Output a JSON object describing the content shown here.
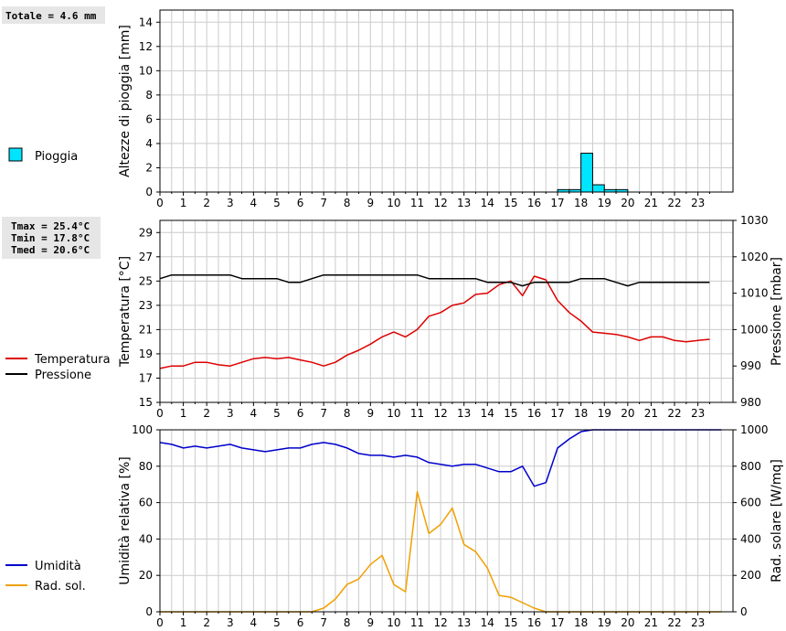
{
  "rain_summary": "Totale = 4.6 mm",
  "temp_summary": [
    "Tmax = 25.4°C",
    "Tmin = 17.8°C",
    "Tmed = 20.6°C"
  ],
  "colors": {
    "rain": "#00e5ff",
    "temperature": "#dd0000",
    "pressure": "#000000",
    "humidity": "#0000cc",
    "radiation": "#f0a000",
    "grid": "#cccccc",
    "summary_box": "#e6e6e6"
  },
  "chart_data": [
    {
      "type": "bar",
      "ylabel": "Altezze di pioggia [mm]",
      "ylim": [
        0,
        15
      ],
      "yticks": [
        0,
        2,
        4,
        6,
        8,
        10,
        12,
        14
      ],
      "xticks": [
        0,
        1,
        2,
        3,
        4,
        5,
        6,
        7,
        8,
        9,
        10,
        11,
        12,
        13,
        14,
        15,
        16,
        17,
        18,
        19,
        20,
        21,
        22,
        23
      ],
      "xlim": [
        0,
        24.5
      ],
      "grid": true,
      "legend": [
        {
          "name": "Pioggia",
          "color": "#00e5ff"
        }
      ],
      "series": [
        {
          "name": "Pioggia",
          "bin_width": 0.5,
          "x": [
            17.0,
            17.5,
            18.0,
            18.5,
            19.0,
            19.5
          ],
          "values": [
            0.2,
            0.2,
            3.2,
            0.6,
            0.2,
            0.2
          ]
        }
      ]
    },
    {
      "type": "line",
      "ylabel": "Temperatura [°C]",
      "ylim": [
        15,
        30
      ],
      "yticks": [
        15,
        17,
        19,
        21,
        23,
        25,
        27,
        29
      ],
      "y2label": "Pressione [mbar]",
      "y2lim": [
        980,
        1030
      ],
      "y2ticks": [
        980,
        990,
        1000,
        1010,
        1020,
        1030
      ],
      "xticks": [
        0,
        1,
        2,
        3,
        4,
        5,
        6,
        7,
        8,
        9,
        10,
        11,
        12,
        13,
        14,
        15,
        16,
        17,
        18,
        19,
        20,
        21,
        22,
        23
      ],
      "xlim": [
        0,
        24.5
      ],
      "grid": true,
      "legend": [
        {
          "name": "Temperatura",
          "color": "#dd0000"
        },
        {
          "name": "Pressione",
          "color": "#000000"
        }
      ],
      "series": [
        {
          "name": "Temperatura",
          "axis": "left",
          "x": [
            0,
            0.5,
            1,
            1.5,
            2,
            2.5,
            3,
            3.5,
            4,
            4.5,
            5,
            5.5,
            6,
            6.5,
            7,
            7.5,
            8,
            8.5,
            9,
            9.5,
            10,
            10.5,
            11,
            11.5,
            12,
            12.5,
            13,
            13.5,
            14,
            14.5,
            15,
            15.5,
            16,
            16.5,
            17,
            17.5,
            18,
            18.5,
            19,
            19.5,
            20,
            20.5,
            21,
            21.5,
            22,
            22.5,
            23,
            23.5
          ],
          "values": [
            17.8,
            18.0,
            18.0,
            18.3,
            18.3,
            18.1,
            18.0,
            18.3,
            18.6,
            18.7,
            18.6,
            18.7,
            18.5,
            18.3,
            18.0,
            18.3,
            18.9,
            19.3,
            19.8,
            20.4,
            20.8,
            20.4,
            21.0,
            22.1,
            22.4,
            23.0,
            23.2,
            23.9,
            24.0,
            24.7,
            25.0,
            23.8,
            25.4,
            25.1,
            23.4,
            22.4,
            21.7,
            20.8,
            20.7,
            20.6,
            20.4,
            20.1,
            20.4,
            20.4,
            20.1,
            20.0,
            20.1,
            20.2
          ]
        },
        {
          "name": "Pressione",
          "axis": "right",
          "x": [
            0,
            0.5,
            1,
            1.5,
            2,
            2.5,
            3,
            3.5,
            4,
            4.5,
            5,
            5.5,
            6,
            6.5,
            7,
            7.5,
            8,
            8.5,
            9,
            9.5,
            10,
            10.5,
            11,
            11.5,
            12,
            12.5,
            13,
            13.5,
            14,
            14.5,
            15,
            15.5,
            16,
            16.5,
            17,
            17.5,
            18,
            18.5,
            19,
            19.5,
            20,
            20.5,
            21,
            21.5,
            22,
            22.5,
            23,
            23.5
          ],
          "values": [
            1014,
            1015,
            1015,
            1015,
            1015,
            1015,
            1015,
            1014,
            1014,
            1014,
            1014,
            1013,
            1013,
            1014,
            1015,
            1015,
            1015,
            1015,
            1015,
            1015,
            1015,
            1015,
            1015,
            1014,
            1014,
            1014,
            1014,
            1014,
            1013,
            1013,
            1013,
            1012,
            1013,
            1013,
            1013,
            1013,
            1014,
            1014,
            1014,
            1013,
            1012,
            1013,
            1013,
            1013,
            1013,
            1013,
            1013,
            1013
          ]
        }
      ]
    },
    {
      "type": "line",
      "ylabel": "Umidità relativa [%]",
      "ylim": [
        0,
        100
      ],
      "yticks": [
        0,
        20,
        40,
        60,
        80,
        100
      ],
      "y2label": "Rad. solare [W/mq]",
      "y2lim": [
        0,
        1000
      ],
      "y2ticks": [
        0,
        200,
        400,
        600,
        800,
        1000
      ],
      "xticks": [
        0,
        1,
        2,
        3,
        4,
        5,
        6,
        7,
        8,
        9,
        10,
        11,
        12,
        13,
        14,
        15,
        16,
        17,
        18,
        19,
        20,
        21,
        22,
        23
      ],
      "xlim": [
        0,
        24.5
      ],
      "grid": true,
      "legend": [
        {
          "name": "Umidità",
          "color": "#0000cc"
        },
        {
          "name": "Rad. sol.",
          "color": "#f0a000"
        }
      ],
      "series": [
        {
          "name": "Umidità",
          "axis": "left",
          "x": [
            0,
            0.5,
            1,
            1.5,
            2,
            2.5,
            3,
            3.5,
            4,
            4.5,
            5,
            5.5,
            6,
            6.5,
            7,
            7.5,
            8,
            8.5,
            9,
            9.5,
            10,
            10.5,
            11,
            11.5,
            12,
            12.5,
            13,
            13.5,
            14,
            14.5,
            15,
            15.5,
            16,
            16.5,
            17,
            17.5,
            18,
            18.5,
            19,
            19.5,
            20,
            20.5,
            21,
            21.5,
            22,
            22.5,
            23,
            23.5,
            24
          ],
          "values": [
            93,
            92,
            90,
            91,
            90,
            91,
            92,
            90,
            89,
            88,
            89,
            90,
            90,
            92,
            93,
            92,
            90,
            87,
            86,
            86,
            85,
            86,
            85,
            82,
            81,
            80,
            81,
            81,
            79,
            77,
            77,
            80,
            69,
            71,
            90,
            95,
            99,
            100,
            100,
            100,
            100,
            100,
            100,
            100,
            100,
            100,
            100,
            100,
            100
          ]
        },
        {
          "name": "Rad. sol.",
          "axis": "right",
          "x": [
            0,
            0.5,
            1,
            1.5,
            2,
            2.5,
            3,
            3.5,
            4,
            4.5,
            5,
            5.5,
            6,
            6.5,
            7,
            7.5,
            8,
            8.5,
            9,
            9.5,
            10,
            10.5,
            11,
            11.5,
            12,
            12.5,
            13,
            13.5,
            14,
            14.5,
            15,
            15.5,
            16,
            16.5,
            17,
            17.5,
            18,
            18.5,
            19,
            19.5,
            20,
            20.5,
            21,
            21.5,
            22,
            22.5,
            23,
            23.5,
            24
          ],
          "values": [
            0,
            0,
            0,
            0,
            0,
            0,
            0,
            0,
            0,
            0,
            0,
            0,
            0,
            0,
            20,
            70,
            150,
            180,
            260,
            310,
            150,
            110,
            660,
            430,
            480,
            570,
            370,
            330,
            240,
            90,
            80,
            50,
            20,
            0,
            0,
            0,
            0,
            0,
            0,
            0,
            0,
            0,
            0,
            0,
            0,
            0,
            0,
            0,
            0
          ]
        }
      ]
    }
  ]
}
